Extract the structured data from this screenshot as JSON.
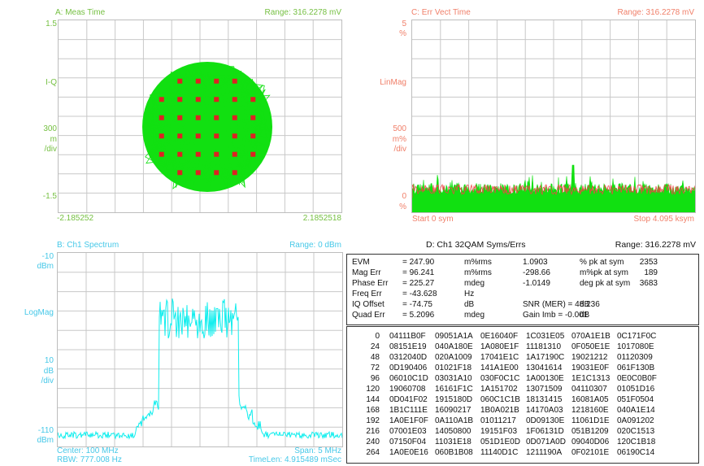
{
  "panelA": {
    "title": "A: Meas Time",
    "range": "Range: 316.2278 mV",
    "y_top": "1.5",
    "y_mid": "I-Q",
    "scale_val": "300",
    "scale_unit1": "m",
    "scale_unit2": "/div",
    "y_bottom": "-1.5",
    "x_left": "-2.185252",
    "x_right": "2.1852518"
  },
  "panelB": {
    "title": "B: Ch1 Spectrum",
    "range": "Range: 0 dBm",
    "y_top1": "-10",
    "y_top2": "dBm",
    "y_mid": "LogMag",
    "scale_val": "10",
    "scale_unit1": "dB",
    "scale_unit2": "/div",
    "y_bottom1": "-110",
    "y_bottom2": "dBm",
    "center": "Center: 100 MHz",
    "span": "Span: 5 MHz",
    "rbw": "RBW: 777.008  Hz",
    "timelen": "TimeLen: 4.915489 mSec"
  },
  "panelC": {
    "title": "C: Err Vect Time",
    "range": "Range: 316.2278 mV",
    "y_top1": "5",
    "y_top2": "%",
    "y_mid": "LinMag",
    "scale_val": "500",
    "scale_unit1": "m%",
    "scale_unit2": "/div",
    "y_bottom1": "0",
    "y_bottom2": "%",
    "start": "Start  0  sym",
    "stop": "Stop  4.095 ksym"
  },
  "panelD": {
    "title": "D: Ch1 32QAM Syms/Errs",
    "range": "Range: 316.2278 mV",
    "summary": [
      [
        "EVM",
        "= 247.90",
        "m%rms",
        "1.0903",
        "% pk  at  sym",
        "2353"
      ],
      [
        "Mag Err",
        "= 96.241",
        "m%rms",
        "-298.66",
        "m%pk  at  sym",
        "189"
      ],
      [
        "Phase Err",
        "= 225.27",
        "mdeg",
        "-1.0149",
        "deg  pk  at  sym",
        "3683"
      ],
      [
        "Freq Err",
        "= -43.628",
        "Hz",
        "",
        "",
        ""
      ],
      [
        "IQ Offset",
        "= -74.75",
        "dB",
        "SNR (MER)  =  48.236",
        "dB",
        ""
      ],
      [
        "Quad Err",
        "= 5.2096",
        "mdeg",
        "Gain  Imb   =  -0.001",
        "dB",
        ""
      ]
    ],
    "symbols": [
      [
        "0",
        "04111B0F",
        "09051A1A",
        "0E16040F",
        "1C031E05",
        "070A1E1B",
        "0C171F0C"
      ],
      [
        "24",
        "08151E19",
        "040A180E",
        "1A080E1F",
        "11181310",
        "0F050E1E",
        "1017080E"
      ],
      [
        "48",
        "0312040D",
        "020A1009",
        "17041E1C",
        "1A17190C",
        "19021212",
        "01120309"
      ],
      [
        "72",
        "0D190406",
        "01021F18",
        "141A1E00",
        "13041614",
        "19031E0F",
        "061F130B"
      ],
      [
        "96",
        "06010C1D",
        "03031A10",
        "030F0C1C",
        "1A00130E",
        "1E1C1313",
        "0E0C0B0F"
      ],
      [
        "120",
        "19060708",
        "16161F1C",
        "1A151702",
        "13071509",
        "04110307",
        "01051D16"
      ],
      [
        "144",
        "0D041F02",
        "1915180D",
        "060C1C1B",
        "18131415",
        "16081A05",
        "051F0504"
      ],
      [
        "168",
        "1B1C111E",
        "16090217",
        "1B0A021B",
        "14170A03",
        "1218160E",
        "040A1E14"
      ],
      [
        "192",
        "1A0E1F0F",
        "0A110A1B",
        "01011217",
        "0D09130E",
        "11061D1E",
        "0A091202"
      ],
      [
        "216",
        "07001E03",
        "14050800",
        "19151F03",
        "1F06131D",
        "051B1209",
        "020C1513"
      ],
      [
        "240",
        "07150F04",
        "11031E18",
        "051D1E0D",
        "0D071A0D",
        "09040D06",
        "120C1B18"
      ],
      [
        "264",
        "1A0E0E16",
        "060B1B08",
        "11140D1C",
        "1211190A",
        "0F02101E",
        "06190C14"
      ]
    ]
  },
  "colors": {
    "trace_green": "#11e011",
    "symbol_red": "#dd2222",
    "trace_cyan": "#11eeee",
    "err_red": "#ee4444",
    "label_green": "#76c043",
    "label_cyan": "#46c8e8",
    "label_orange": "#f07f69"
  }
}
